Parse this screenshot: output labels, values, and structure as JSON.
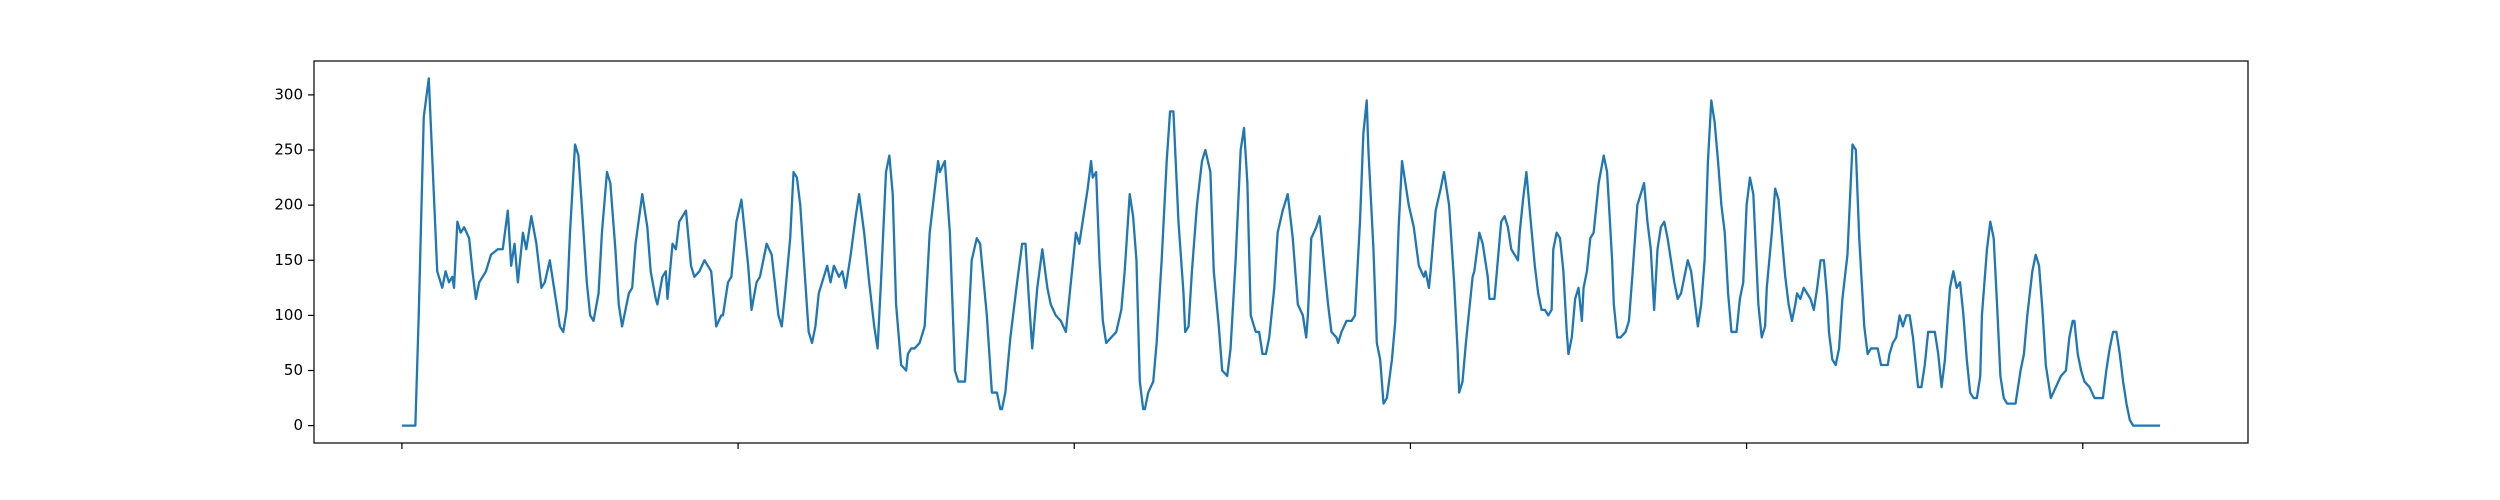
{
  "chart_data": {
    "type": "line",
    "color": "#1f77b4",
    "x": [
      0,
      8,
      10,
      13,
      16,
      21,
      24,
      26,
      28,
      30,
      31,
      33,
      35,
      37,
      40,
      42,
      44,
      46,
      48,
      50,
      53,
      57,
      60,
      63,
      65,
      67,
      69,
      72,
      74,
      77,
      80,
      83,
      85,
      88,
      91,
      94,
      96,
      98,
      100,
      103,
      105,
      107,
      110,
      112,
      114,
      117,
      119,
      122,
      124,
      127,
      129,
      131,
      135,
      137,
      139,
      143,
      146,
      148,
      151,
      152,
      155,
      157,
      158,
      161,
      163,
      165,
      169,
      172,
      174,
      177,
      180,
      184,
      187,
      190,
      191,
      194,
      196,
      199,
      202,
      206,
      208,
      211,
      213,
      217,
      220,
      224,
      226,
      228,
      231,
      233,
      235,
      237,
      240,
      242,
      244,
      246,
      248,
      251,
      253,
      255,
      257,
      260,
      262,
      264,
      265,
      267,
      270,
      272,
      275,
      278,
      281,
      283,
      285,
      288,
      290,
      292,
      294,
      297,
      300,
      301,
      303,
      305,
      308,
      311,
      314,
      319,
      320,
      323,
      326,
      329,
      331,
      335,
      337,
      339,
      342,
      344,
      348,
      351,
      354,
      356,
      357,
      359,
      362,
      366,
      369,
      371,
      373,
      375,
      378,
      381,
      384,
      386,
      389,
      392,
      395,
      398,
      401,
      403,
      405,
      408,
      410,
      411,
      413,
      415,
      417,
      419,
      422,
      425,
      428,
      430,
      433,
      435,
      437,
      439,
      441,
      442,
      444,
      447,
      449,
      452,
      455,
      457,
      459,
      462,
      465,
      466,
      468,
      470,
      473,
      476,
      478,
      481,
      483,
      486,
      488,
      491,
      493,
      496,
      499,
      501,
      503,
      505,
      508,
      510,
      512,
      514,
      516,
      519,
      521,
      524,
      527,
      530,
      533,
      536,
      538,
      539,
      541,
      544,
      546,
      549,
      551,
      553,
      556,
      557,
      559,
      562,
      565,
      567,
      570,
      572,
      574,
      575,
      578,
      580,
      582,
      584,
      586,
      589,
      591,
      593,
      595,
      597,
      599,
      602,
      605,
      608,
      609,
      611,
      612,
      615,
      618,
      620,
      623,
      626,
      628,
      629,
      631,
      633,
      635,
      637,
      638,
      641,
      643,
      646,
      647,
      650,
      652,
      654,
      656,
      658,
      660,
      662,
      664,
      665,
      667,
      669,
      671,
      674,
      676,
      678,
      680,
      682,
      684,
      685,
      687,
      689,
      691,
      693,
      694,
      696,
      698,
      700,
      702,
      703,
      705,
      707,
      709,
      712,
      715,
      717,
      720,
      721,
      723,
      725,
      728,
      730,
      732,
      735,
      738,
      739,
      741,
      743,
      745,
      747,
      749,
      751,
      753,
      755,
      757,
      759,
      761,
      763,
      765,
      767,
      769,
      771,
      773,
      775,
      777,
      779,
      781,
      783,
      785,
      787,
      789,
      791,
      793,
      794,
      796,
      798,
      800,
      802,
      804,
      807,
      809,
      811,
      812,
      815,
      817,
      819,
      821,
      823,
      825,
      827,
      829,
      830,
      832,
      834,
      836,
      838,
      840,
      842,
      844,
      846,
      848,
      849,
      851,
      853,
      855,
      857,
      860,
      863,
      865,
      867,
      870,
      872,
      874,
      876,
      878,
      880,
      884,
      885,
      887,
      889,
      891,
      893,
      895,
      897,
      899,
      901,
      902,
      904,
      906,
      908,
      910,
      912,
      914,
      916,
      918,
      920,
      921,
      923,
      925,
      927,
      929,
      931,
      933,
      935,
      937,
      939,
      940,
      943,
      945,
      947,
      949,
      951,
      953,
      955,
      960,
      963,
      965,
      967,
      970,
      972,
      974,
      976,
      978,
      981,
      984,
      987,
      990,
      992,
      994,
      995,
      997,
      999,
      1001,
      1004,
      1007,
      1012,
      1014,
      1016,
      1018,
      1020,
      1022,
      1024,
      1026,
      1028,
      1030,
      1046
    ],
    "values": [
      0,
      0,
      100,
      280,
      315,
      140,
      125,
      140,
      130,
      135,
      125,
      185,
      175,
      180,
      170,
      140,
      115,
      130,
      135,
      140,
      155,
      160,
      160,
      195,
      145,
      165,
      130,
      175,
      160,
      190,
      165,
      125,
      130,
      150,
      120,
      90,
      85,
      105,
      175,
      255,
      245,
      200,
      130,
      100,
      95,
      120,
      175,
      230,
      220,
      160,
      110,
      90,
      120,
      125,
      165,
      210,
      180,
      140,
      115,
      110,
      135,
      140,
      115,
      165,
      160,
      185,
      195,
      145,
      135,
      140,
      150,
      140,
      90,
      100,
      100,
      130,
      135,
      185,
      205,
      145,
      105,
      130,
      135,
      165,
      155,
      100,
      90,
      120,
      170,
      230,
      225,
      200,
      130,
      85,
      75,
      90,
      120,
      135,
      145,
      130,
      145,
      135,
      140,
      125,
      135,
      155,
      190,
      210,
      175,
      130,
      90,
      70,
      130,
      230,
      245,
      210,
      110,
      55,
      50,
      65,
      70,
      70,
      75,
      90,
      175,
      240,
      230,
      240,
      175,
      50,
      40,
      40,
      90,
      150,
      170,
      165,
      100,
      30,
      30,
      15,
      15,
      30,
      80,
      130,
      165,
      165,
      115,
      70,
      125,
      160,
      125,
      110,
      100,
      95,
      85,
      130,
      175,
      165,
      185,
      215,
      240,
      225,
      230,
      150,
      95,
      75,
      80,
      85,
      105,
      140,
      210,
      190,
      150,
      40,
      15,
      15,
      30,
      40,
      75,
      150,
      240,
      285,
      285,
      185,
      120,
      85,
      90,
      140,
      200,
      240,
      250,
      230,
      140,
      90,
      50,
      45,
      70,
      150,
      250,
      270,
      220,
      100,
      85,
      85,
      65,
      65,
      80,
      125,
      175,
      195,
      210,
      170,
      110,
      100,
      80,
      100,
      170,
      180,
      190,
      140,
      110,
      85,
      80,
      75,
      85,
      95,
      95,
      100,
      185,
      265,
      295,
      250,
      160,
      75,
      60,
      20,
      25,
      60,
      95,
      180,
      240,
      220,
      200,
      180,
      145,
      135,
      140,
      125,
      140,
      195,
      215,
      230,
      200,
      130,
      70,
      30,
      40,
      75,
      105,
      135,
      140,
      175,
      165,
      135,
      115,
      115,
      150,
      185,
      190,
      180,
      160,
      155,
      150,
      175,
      205,
      230,
      195,
      145,
      120,
      105,
      105,
      100,
      105,
      160,
      175,
      170,
      140,
      85,
      65,
      80,
      115,
      125,
      95,
      125,
      140,
      170,
      175,
      220,
      245,
      230,
      150,
      110,
      80,
      80,
      85,
      95,
      135,
      200,
      215,
      220,
      185,
      160,
      105,
      160,
      180,
      185,
      170,
      150,
      130,
      115,
      120,
      135,
      150,
      140,
      115,
      90,
      110,
      150,
      240,
      295,
      275,
      240,
      200,
      175,
      120,
      85,
      85,
      85,
      115,
      130,
      200,
      225,
      210,
      110,
      80,
      90,
      125,
      175,
      215,
      205,
      170,
      135,
      110,
      95,
      110,
      120,
      115,
      125,
      120,
      115,
      105,
      125,
      150,
      150,
      115,
      85,
      60,
      55,
      70,
      115,
      155,
      255,
      250,
      170,
      90,
      65,
      70,
      70,
      70,
      55,
      55,
      65,
      75,
      80,
      100,
      90,
      100,
      100,
      80,
      50,
      35,
      35,
      55,
      85,
      85,
      85,
      65,
      35,
      60,
      105,
      125,
      140,
      125,
      130,
      100,
      60,
      30,
      25,
      25,
      45,
      100,
      160,
      185,
      170,
      110,
      45,
      25,
      20,
      20,
      50,
      65,
      100,
      140,
      155,
      145,
      105,
      55,
      25,
      35,
      45,
      50,
      80,
      95,
      95,
      65,
      50,
      40,
      35,
      25,
      25,
      50,
      70,
      85,
      85,
      65,
      40,
      20,
      5,
      0,
      0
    ],
    "xlim": [
      -52.3,
      1098.3
    ],
    "xticks": [
      0,
      200,
      400,
      600,
      800,
      1000
    ],
    "ylim": [
      -15.75,
      330.75
    ],
    "yticks": [
      0,
      50,
      100,
      150,
      200,
      250,
      300
    ]
  }
}
